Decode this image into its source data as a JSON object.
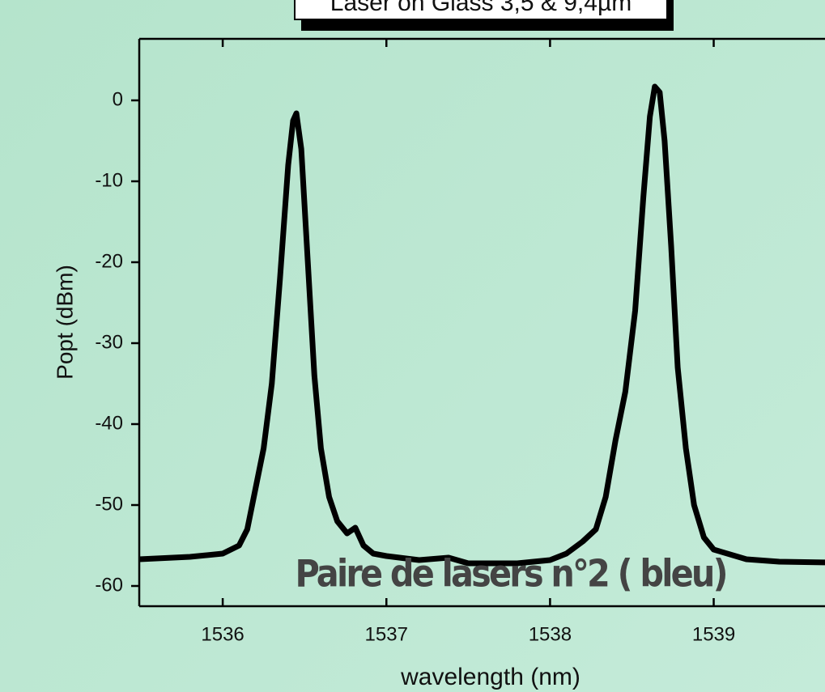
{
  "chart_data": {
    "type": "line",
    "title": "Laser on Glass 3,5 & 9,4µm",
    "annotation": "Paire de lasers n°2 ( bleu)",
    "x_label": "wavelength (nm)",
    "y_label": "Popt (dBm)",
    "series": [
      {
        "name": "Popt",
        "color": "#000000",
        "x": [
          1535.49,
          1535.8,
          1536.0,
          1536.1,
          1536.15,
          1536.2,
          1536.25,
          1536.3,
          1536.35,
          1536.4,
          1536.43,
          1536.45,
          1536.48,
          1536.52,
          1536.56,
          1536.6,
          1536.65,
          1536.7,
          1536.76,
          1536.81,
          1536.86,
          1536.92,
          1537.0,
          1537.2,
          1537.38,
          1537.5,
          1537.8,
          1538.0,
          1538.1,
          1538.2,
          1538.28,
          1538.34,
          1538.4,
          1538.46,
          1538.52,
          1538.57,
          1538.61,
          1538.64,
          1538.67,
          1538.7,
          1538.74,
          1538.78,
          1538.83,
          1538.88,
          1538.94,
          1539.0,
          1539.2,
          1539.4,
          1539.7
        ],
        "values": [
          -56.7,
          -56.4,
          -56.0,
          -55.0,
          -53.0,
          -48.0,
          -43.0,
          -35.0,
          -22.0,
          -8.0,
          -2.5,
          -1.6,
          -6.0,
          -20.0,
          -34.0,
          -43.0,
          -49.0,
          -52.0,
          -53.5,
          -52.8,
          -55.0,
          -56.0,
          -56.3,
          -56.8,
          -56.5,
          -57.2,
          -57.2,
          -56.8,
          -56.0,
          -54.5,
          -53.0,
          -49.0,
          -42.0,
          -36.0,
          -26.0,
          -12.0,
          -2.0,
          1.7,
          1.0,
          -5.0,
          -18.0,
          -33.0,
          -43.0,
          -50.0,
          -54.0,
          -55.5,
          -56.7,
          -57.0,
          -57.1
        ]
      }
    ],
    "xlim": [
      1535.49,
      1539.68
    ],
    "ylim": [
      -62.5,
      7.6
    ],
    "xticks": [
      1536,
      1537,
      1538,
      1539
    ],
    "yticks": [
      0,
      -10,
      -20,
      -30,
      -40,
      -50,
      -60
    ]
  }
}
